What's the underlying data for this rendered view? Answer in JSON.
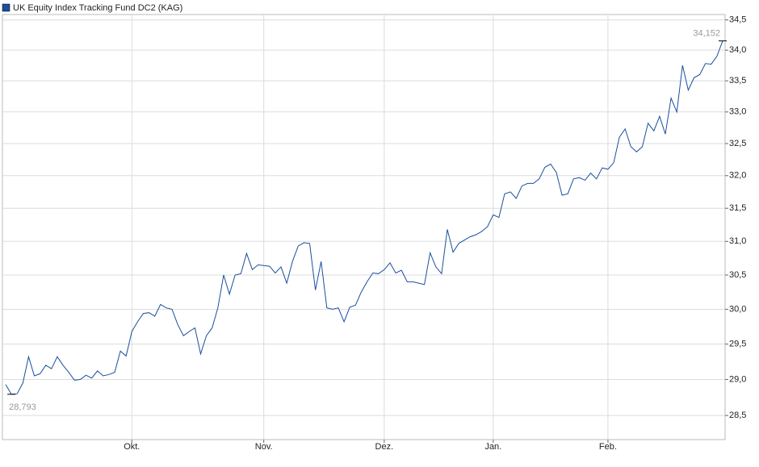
{
  "chart_data": {
    "type": "line",
    "title": "UK Equity Index Tracking Fund DC2 (KAG)",
    "categories": [
      null,
      null,
      null,
      null,
      null,
      null,
      null,
      null,
      null,
      null,
      null,
      null,
      null,
      null,
      null,
      null,
      null,
      null,
      null,
      null,
      null,
      null,
      "Okt.",
      null,
      null,
      null,
      null,
      null,
      null,
      null,
      null,
      null,
      null,
      null,
      null,
      null,
      null,
      null,
      null,
      null,
      null,
      null,
      null,
      null,
      null,
      "Nov.",
      null,
      null,
      null,
      null,
      null,
      null,
      null,
      null,
      null,
      null,
      null,
      null,
      null,
      null,
      null,
      null,
      null,
      null,
      null,
      null,
      "Dez.",
      null,
      null,
      null,
      null,
      null,
      null,
      null,
      null,
      null,
      null,
      null,
      null,
      null,
      null,
      null,
      null,
      null,
      null,
      "Jan.",
      null,
      null,
      null,
      null,
      null,
      null,
      null,
      null,
      null,
      null,
      null,
      null,
      null,
      null,
      null,
      null,
      null,
      null,
      null,
      "Feb.",
      null,
      null,
      null,
      null,
      null,
      null,
      null,
      null,
      null,
      null,
      null,
      null,
      null,
      null,
      null,
      null,
      null,
      null,
      null,
      null
    ],
    "series": [
      {
        "name": "UK Equity Index Tracking Fund DC2 (KAG)",
        "color": "#1a4f9c",
        "values": [
          28.93,
          28.793,
          28.8,
          28.95,
          29.32,
          29.05,
          29.08,
          29.2,
          29.15,
          29.32,
          29.2,
          29.1,
          28.99,
          29.0,
          29.06,
          29.02,
          29.12,
          29.05,
          29.07,
          29.1,
          29.4,
          29.33,
          29.68,
          29.82,
          29.94,
          29.95,
          29.9,
          30.07,
          30.02,
          30.0,
          29.78,
          29.62,
          29.68,
          29.73,
          29.36,
          29.62,
          29.73,
          30.02,
          30.5,
          30.22,
          30.5,
          30.52,
          30.82,
          30.58,
          30.65,
          30.64,
          30.63,
          30.53,
          30.62,
          30.38,
          30.7,
          30.93,
          30.98,
          30.97,
          30.28,
          30.7,
          30.02,
          30.0,
          30.02,
          29.82,
          30.03,
          30.06,
          30.25,
          30.4,
          30.53,
          30.52,
          30.58,
          30.68,
          30.53,
          30.57,
          30.4,
          30.4,
          30.38,
          30.36,
          30.83,
          30.62,
          30.52,
          31.18,
          30.84,
          30.97,
          31.02,
          31.07,
          31.1,
          31.15,
          31.22,
          31.4,
          31.36,
          31.72,
          31.75,
          31.65,
          31.84,
          31.88,
          31.88,
          31.95,
          32.13,
          32.18,
          32.05,
          31.7,
          31.72,
          31.95,
          31.97,
          31.93,
          32.04,
          31.95,
          32.12,
          32.1,
          32.2,
          32.6,
          32.73,
          32.45,
          32.37,
          32.45,
          32.82,
          32.7,
          32.93,
          32.65,
          33.22,
          33.0,
          33.75,
          33.35,
          33.55,
          33.6,
          33.78,
          33.77,
          33.9,
          34.152
        ],
        "value_labels": [
          null,
          "28,793",
          null,
          null,
          null,
          null,
          null,
          null,
          null,
          null,
          null,
          null,
          null,
          null,
          null,
          null,
          null,
          null,
          null,
          null,
          null,
          null,
          null,
          null,
          null,
          null,
          null,
          null,
          null,
          null,
          null,
          null,
          null,
          null,
          null,
          null,
          null,
          null,
          null,
          null,
          null,
          null,
          null,
          null,
          null,
          null,
          null,
          null,
          null,
          null,
          null,
          null,
          null,
          null,
          null,
          null,
          null,
          null,
          null,
          null,
          null,
          null,
          null,
          null,
          null,
          null,
          null,
          null,
          null,
          null,
          null,
          null,
          null,
          null,
          null,
          null,
          null,
          null,
          null,
          null,
          null,
          null,
          null,
          null,
          null,
          null,
          null,
          null,
          null,
          null,
          null,
          null,
          null,
          null,
          null,
          null,
          null,
          null,
          null,
          null,
          null,
          null,
          null,
          null,
          null,
          null,
          null,
          null,
          null,
          null,
          null,
          null,
          null,
          null,
          null,
          null,
          null,
          null,
          null,
          null,
          null,
          null,
          null,
          null,
          null,
          "34,152"
        ]
      }
    ],
    "ylim": [
      28.17,
      34.59
    ],
    "log_scale": true,
    "grid": true,
    "yticks": [
      {
        "value": 28.5,
        "label": "28,5"
      },
      {
        "value": 29.0,
        "label": "29,0"
      },
      {
        "value": 29.5,
        "label": "29,5"
      },
      {
        "value": 30.0,
        "label": "30,0"
      },
      {
        "value": 30.5,
        "label": "30,5"
      },
      {
        "value": 31.0,
        "label": "31,0"
      },
      {
        "value": 31.5,
        "label": "31,5"
      },
      {
        "value": 32.0,
        "label": "32,0"
      },
      {
        "value": 32.5,
        "label": "32,5"
      },
      {
        "value": 33.0,
        "label": "33,0"
      },
      {
        "value": 33.5,
        "label": "33,5"
      },
      {
        "value": 34.0,
        "label": "34,0"
      },
      {
        "value": 34.5,
        "label": "34,5"
      }
    ]
  }
}
